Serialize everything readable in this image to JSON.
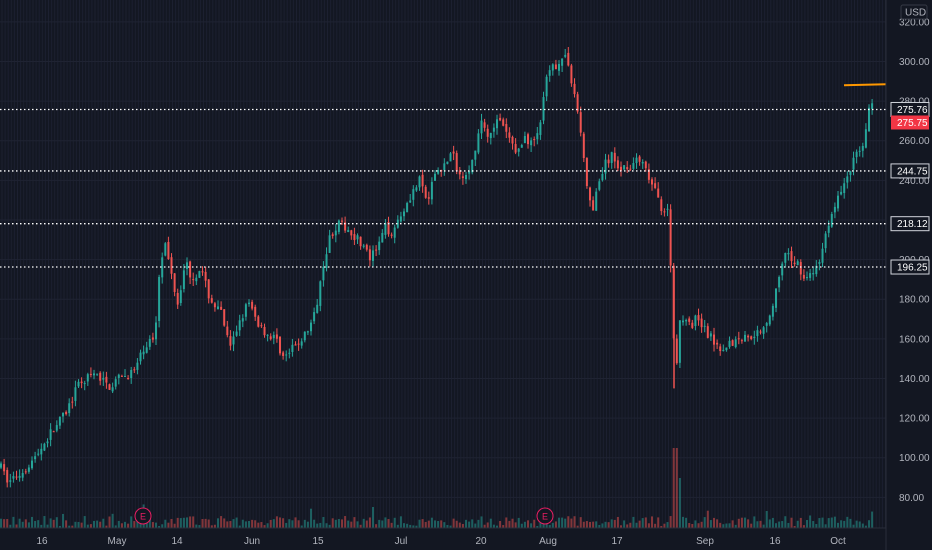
{
  "chart_data": {
    "type": "candlestick",
    "currency": "USD",
    "ylim": [
      60,
      330
    ],
    "y_ticks": [
      "80.00",
      "100.00",
      "120.00",
      "140.00",
      "160.00",
      "180.00",
      "200.00",
      "220.00",
      "240.00",
      "260.00",
      "280.00",
      "300.00",
      "320.00"
    ],
    "x_ticks": [
      "16",
      "May",
      "14",
      "Jun",
      "15",
      "Jul",
      "20",
      "Aug",
      "17",
      "Sep",
      "16",
      "Oct"
    ],
    "horizontal_levels": [
      {
        "value": 275.76,
        "label": "275.76"
      },
      {
        "value": 244.75,
        "label": "244.75"
      },
      {
        "value": 218.12,
        "label": "218.12"
      },
      {
        "value": 196.25,
        "label": "196.25"
      }
    ],
    "last_price": {
      "value": 275.75,
      "label": "275.75"
    },
    "resistance_line_value": 288,
    "earnings_markers": [
      {
        "label": "E"
      },
      {
        "label": "E"
      }
    ],
    "price_path": [
      [
        0,
        96
      ],
      [
        8,
        88
      ],
      [
        20,
        92
      ],
      [
        35,
        100
      ],
      [
        50,
        112
      ],
      [
        65,
        122
      ],
      [
        80,
        138
      ],
      [
        95,
        142
      ],
      [
        110,
        136
      ],
      [
        120,
        140
      ],
      [
        135,
        144
      ],
      [
        145,
        156
      ],
      [
        155,
        162
      ],
      [
        160,
        200
      ],
      [
        165,
        208
      ],
      [
        170,
        196
      ],
      [
        178,
        178
      ],
      [
        185,
        200
      ],
      [
        192,
        190
      ],
      [
        200,
        196
      ],
      [
        210,
        180
      ],
      [
        222,
        172
      ],
      [
        230,
        154
      ],
      [
        240,
        170
      ],
      [
        248,
        178
      ],
      [
        258,
        168
      ],
      [
        268,
        162
      ],
      [
        276,
        160
      ],
      [
        284,
        150
      ],
      [
        295,
        156
      ],
      [
        305,
        162
      ],
      [
        315,
        172
      ],
      [
        322,
        196
      ],
      [
        330,
        212
      ],
      [
        338,
        218
      ],
      [
        346,
        216
      ],
      [
        355,
        212
      ],
      [
        362,
        208
      ],
      [
        370,
        200
      ],
      [
        378,
        206
      ],
      [
        385,
        216
      ],
      [
        392,
        214
      ],
      [
        400,
        222
      ],
      [
        410,
        232
      ],
      [
        420,
        240
      ],
      [
        428,
        228
      ],
      [
        435,
        244
      ],
      [
        445,
        248
      ],
      [
        452,
        254
      ],
      [
        460,
        242
      ],
      [
        468,
        246
      ],
      [
        475,
        252
      ],
      [
        482,
        272
      ],
      [
        488,
        262
      ],
      [
        495,
        270
      ],
      [
        502,
        268
      ],
      [
        510,
        260
      ],
      [
        518,
        254
      ],
      [
        525,
        262
      ],
      [
        532,
        258
      ],
      [
        540,
        268
      ],
      [
        547,
        292
      ],
      [
        555,
        298
      ],
      [
        562,
        302
      ],
      [
        568,
        300
      ],
      [
        575,
        282
      ],
      [
        580,
        268
      ],
      [
        585,
        244
      ],
      [
        592,
        222
      ],
      [
        598,
        238
      ],
      [
        605,
        248
      ],
      [
        612,
        252
      ],
      [
        620,
        246
      ],
      [
        630,
        248
      ],
      [
        640,
        250
      ],
      [
        648,
        242
      ],
      [
        655,
        234
      ],
      [
        662,
        226
      ],
      [
        668,
        224
      ],
      [
        672,
        186
      ],
      [
        675,
        140
      ],
      [
        680,
        168
      ],
      [
        686,
        172
      ],
      [
        692,
        166
      ],
      [
        698,
        172
      ],
      [
        705,
        164
      ],
      [
        712,
        160
      ],
      [
        720,
        156
      ],
      [
        730,
        158
      ],
      [
        740,
        160
      ],
      [
        750,
        162
      ],
      [
        760,
        164
      ],
      [
        770,
        172
      ],
      [
        778,
        188
      ],
      [
        785,
        202
      ],
      [
        792,
        200
      ],
      [
        798,
        198
      ],
      [
        805,
        190
      ],
      [
        812,
        192
      ],
      [
        820,
        200
      ],
      [
        828,
        218
      ],
      [
        836,
        228
      ],
      [
        842,
        236
      ],
      [
        850,
        246
      ],
      [
        858,
        254
      ],
      [
        865,
        262
      ],
      [
        870,
        280
      ],
      [
        874,
        276
      ]
    ]
  }
}
